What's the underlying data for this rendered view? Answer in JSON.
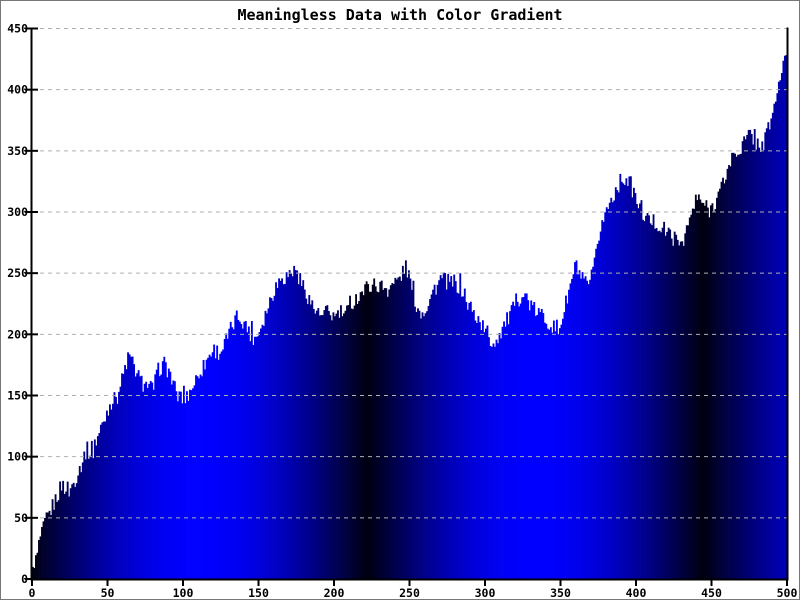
{
  "window": {
    "border_color": "#777777",
    "background": "#ffffff"
  },
  "chart_data": {
    "type": "bar",
    "title": "Meaningless Data with Color Gradient",
    "xlabel": "",
    "ylabel": "",
    "xlim": [
      0,
      500
    ],
    "ylim": [
      0,
      450
    ],
    "x_ticks": [
      0,
      50,
      100,
      150,
      200,
      250,
      300,
      350,
      400,
      450,
      500
    ],
    "y_ticks": [
      0,
      50,
      100,
      150,
      200,
      250,
      300,
      350,
      400,
      450
    ],
    "grid": "horizontal-dashed",
    "grid_color": "#b0b0b0",
    "axis_color": "#000000",
    "label_color": "#000000",
    "n_bars": 500,
    "bar_width_units": 1,
    "noise_amplitude": 7,
    "gradient": {
      "rule": "blue_channel = 16 + 239 * abs(sin(pi * x / half_period))",
      "half_period_x": 222.2,
      "bright_color": "#0000ff",
      "dark_color": "#000010",
      "bright_at_x": [
        111,
        333
      ],
      "dark_at_x": [
        0,
        222,
        444
      ]
    },
    "points": [
      [
        0,
        3
      ],
      [
        4,
        22
      ],
      [
        8,
        44
      ],
      [
        12,
        55
      ],
      [
        16,
        66
      ],
      [
        20,
        78
      ],
      [
        24,
        70
      ],
      [
        28,
        80
      ],
      [
        32,
        92
      ],
      [
        36,
        106
      ],
      [
        40,
        102
      ],
      [
        44,
        118
      ],
      [
        48,
        131
      ],
      [
        52,
        145
      ],
      [
        56,
        147
      ],
      [
        60,
        165
      ],
      [
        64,
        183
      ],
      [
        68,
        172
      ],
      [
        72,
        161
      ],
      [
        76,
        158
      ],
      [
        80,
        155
      ],
      [
        84,
        172
      ],
      [
        88,
        176
      ],
      [
        92,
        164
      ],
      [
        96,
        150
      ],
      [
        100,
        147
      ],
      [
        104,
        152
      ],
      [
        108,
        162
      ],
      [
        112,
        170
      ],
      [
        116,
        180
      ],
      [
        120,
        188
      ],
      [
        124,
        185
      ],
      [
        128,
        192
      ],
      [
        132,
        205
      ],
      [
        136,
        215
      ],
      [
        140,
        211
      ],
      [
        144,
        200
      ],
      [
        148,
        197
      ],
      [
        152,
        208
      ],
      [
        156,
        222
      ],
      [
        160,
        236
      ],
      [
        164,
        245
      ],
      [
        168,
        247
      ],
      [
        172,
        251
      ],
      [
        176,
        248
      ],
      [
        180,
        238
      ],
      [
        184,
        228
      ],
      [
        188,
        217
      ],
      [
        192,
        214
      ],
      [
        196,
        219
      ],
      [
        200,
        214
      ],
      [
        204,
        218
      ],
      [
        208,
        216
      ],
      [
        212,
        226
      ],
      [
        216,
        231
      ],
      [
        220,
        236
      ],
      [
        224,
        241
      ],
      [
        228,
        240
      ],
      [
        232,
        239
      ],
      [
        236,
        237
      ],
      [
        240,
        242
      ],
      [
        244,
        247
      ],
      [
        248,
        255
      ],
      [
        252,
        235
      ],
      [
        256,
        218
      ],
      [
        260,
        220
      ],
      [
        264,
        230
      ],
      [
        268,
        240
      ],
      [
        272,
        245
      ],
      [
        276,
        242
      ],
      [
        280,
        241
      ],
      [
        284,
        238
      ],
      [
        288,
        225
      ],
      [
        292,
        217
      ],
      [
        296,
        212
      ],
      [
        300,
        203
      ],
      [
        304,
        193
      ],
      [
        308,
        196
      ],
      [
        312,
        207
      ],
      [
        316,
        214
      ],
      [
        320,
        224
      ],
      [
        324,
        233
      ],
      [
        328,
        228
      ],
      [
        332,
        220
      ],
      [
        336,
        217
      ],
      [
        340,
        213
      ],
      [
        344,
        208
      ],
      [
        348,
        200
      ],
      [
        352,
        218
      ],
      [
        356,
        237
      ],
      [
        360,
        257
      ],
      [
        364,
        245
      ],
      [
        368,
        238
      ],
      [
        372,
        252
      ],
      [
        376,
        285
      ],
      [
        380,
        300
      ],
      [
        384,
        312
      ],
      [
        388,
        322
      ],
      [
        392,
        328
      ],
      [
        396,
        324
      ],
      [
        400,
        310
      ],
      [
        404,
        300
      ],
      [
        408,
        293
      ],
      [
        412,
        292
      ],
      [
        416,
        288
      ],
      [
        420,
        284
      ],
      [
        424,
        280
      ],
      [
        428,
        274
      ],
      [
        432,
        280
      ],
      [
        436,
        295
      ],
      [
        440,
        311
      ],
      [
        444,
        308
      ],
      [
        448,
        301
      ],
      [
        452,
        308
      ],
      [
        456,
        318
      ],
      [
        460,
        332
      ],
      [
        464,
        346
      ],
      [
        468,
        350
      ],
      [
        472,
        358
      ],
      [
        476,
        364
      ],
      [
        480,
        356
      ],
      [
        484,
        354
      ],
      [
        488,
        370
      ],
      [
        492,
        388
      ],
      [
        496,
        414
      ],
      [
        500,
        427
      ]
    ]
  }
}
